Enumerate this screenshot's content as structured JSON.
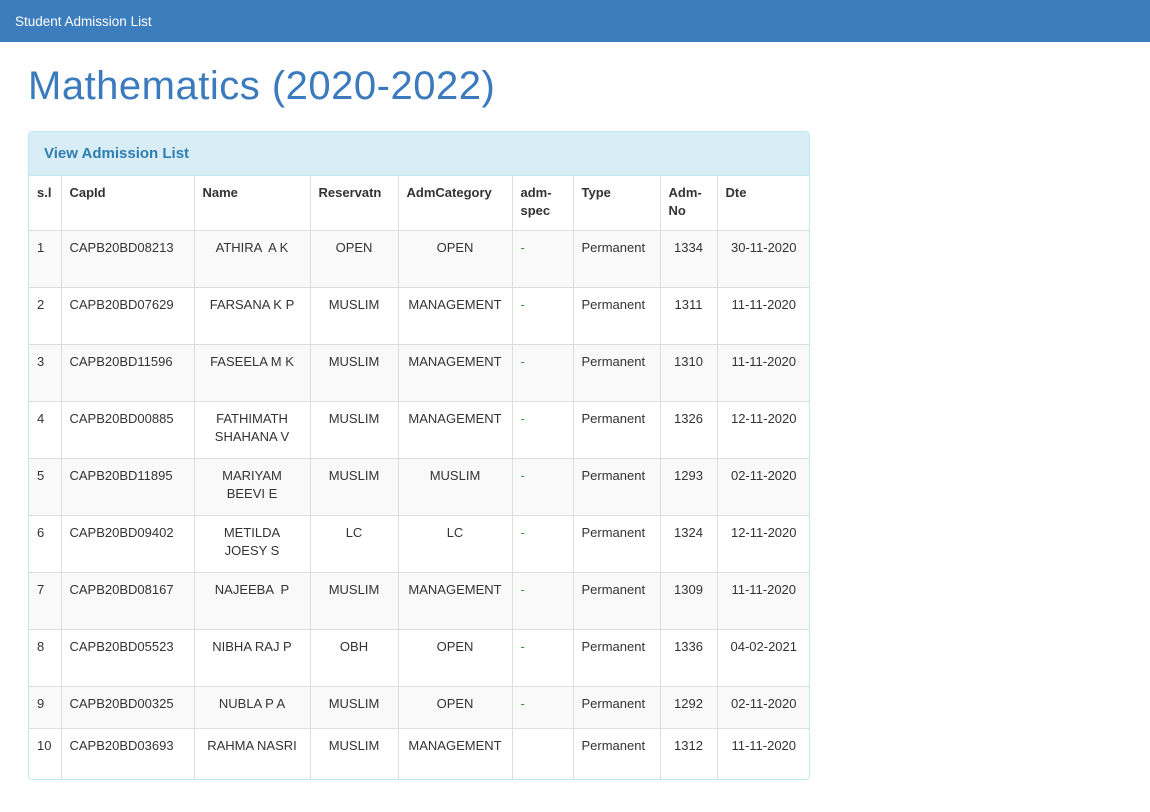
{
  "navbar": {
    "title": "Student Admission List"
  },
  "page": {
    "heading": "Mathematics (2020-2022)"
  },
  "panel": {
    "title": "View Admission List"
  },
  "table": {
    "columns": [
      {
        "key": "sl",
        "label": "s.l"
      },
      {
        "key": "capid",
        "label": "CapId"
      },
      {
        "key": "name",
        "label": "Name"
      },
      {
        "key": "reservatn",
        "label": "Reservatn"
      },
      {
        "key": "admcategory",
        "label": "AdmCategory"
      },
      {
        "key": "admspec",
        "label": "adm-spec"
      },
      {
        "key": "type",
        "label": "Type"
      },
      {
        "key": "admno",
        "label": "Adm-No"
      },
      {
        "key": "dte",
        "label": "Dte"
      }
    ],
    "rows": [
      {
        "sl": "1",
        "capid": "CAPB20BD08213",
        "name": "ATHIRA  A K",
        "reservatn": "OPEN",
        "admcategory": "OPEN",
        "admspec": "-",
        "type": "Permanent",
        "admno": "1334",
        "dte": "30-11-2020"
      },
      {
        "sl": "2",
        "capid": "CAPB20BD07629",
        "name": "FARSANA K P",
        "reservatn": "MUSLIM",
        "admcategory": "MANAGEMENT",
        "admspec": "-",
        "type": "Permanent",
        "admno": "1311",
        "dte": "11-11-2020"
      },
      {
        "sl": "3",
        "capid": "CAPB20BD11596",
        "name": "FASEELA M K",
        "reservatn": "MUSLIM",
        "admcategory": "MANAGEMENT",
        "admspec": "-",
        "type": "Permanent",
        "admno": "1310",
        "dte": "11-11-2020"
      },
      {
        "sl": "4",
        "capid": "CAPB20BD00885",
        "name": "FATHIMATH SHAHANA V",
        "reservatn": "MUSLIM",
        "admcategory": "MANAGEMENT",
        "admspec": "-",
        "type": "Permanent",
        "admno": "1326",
        "dte": "12-11-2020"
      },
      {
        "sl": "5",
        "capid": "CAPB20BD11895",
        "name": "MARIYAM BEEVI E",
        "reservatn": "MUSLIM",
        "admcategory": "MUSLIM",
        "admspec": "-",
        "type": "Permanent",
        "admno": "1293",
        "dte": "02-11-2020"
      },
      {
        "sl": "6",
        "capid": "CAPB20BD09402",
        "name": "METILDA JOESY S",
        "reservatn": "LC",
        "admcategory": "LC",
        "admspec": "-",
        "type": "Permanent",
        "admno": "1324",
        "dte": "12-11-2020"
      },
      {
        "sl": "7",
        "capid": "CAPB20BD08167",
        "name": "NAJEEBA  P",
        "reservatn": "MUSLIM",
        "admcategory": "MANAGEMENT",
        "admspec": "-",
        "type": "Permanent",
        "admno": "1309",
        "dte": "11-11-2020"
      },
      {
        "sl": "8",
        "capid": "CAPB20BD05523",
        "name": "NIBHA RAJ P",
        "reservatn": "OBH",
        "admcategory": "OPEN",
        "admspec": "-",
        "type": "Permanent",
        "admno": "1336",
        "dte": "04-02-2021"
      },
      {
        "sl": "9",
        "capid": "CAPB20BD00325",
        "name": "NUBLA P A",
        "reservatn": "MUSLIM",
        "admcategory": "OPEN",
        "admspec": "-",
        "type": "Permanent",
        "admno": "1292",
        "dte": "02-11-2020"
      },
      {
        "sl": "10",
        "capid": "CAPB20BD03693",
        "name": "RAHMA NASRI",
        "reservatn": "MUSLIM",
        "admcategory": "MANAGEMENT",
        "admspec": "",
        "type": "Permanent",
        "admno": "1312",
        "dte": "11-11-2020"
      }
    ]
  },
  "colors": {
    "navbar_bg": "#3c7dbd",
    "heading_text": "#3a7abd",
    "panel_heading_bg": "#d9edf7",
    "panel_border": "#bce8f1",
    "panel_title_text": "#2e7eb0",
    "table_border": "#dddddd",
    "stripe_row_bg": "#f9f9f9",
    "cell_text": "#333333",
    "admspec_dash_green": "#3a9c35"
  }
}
